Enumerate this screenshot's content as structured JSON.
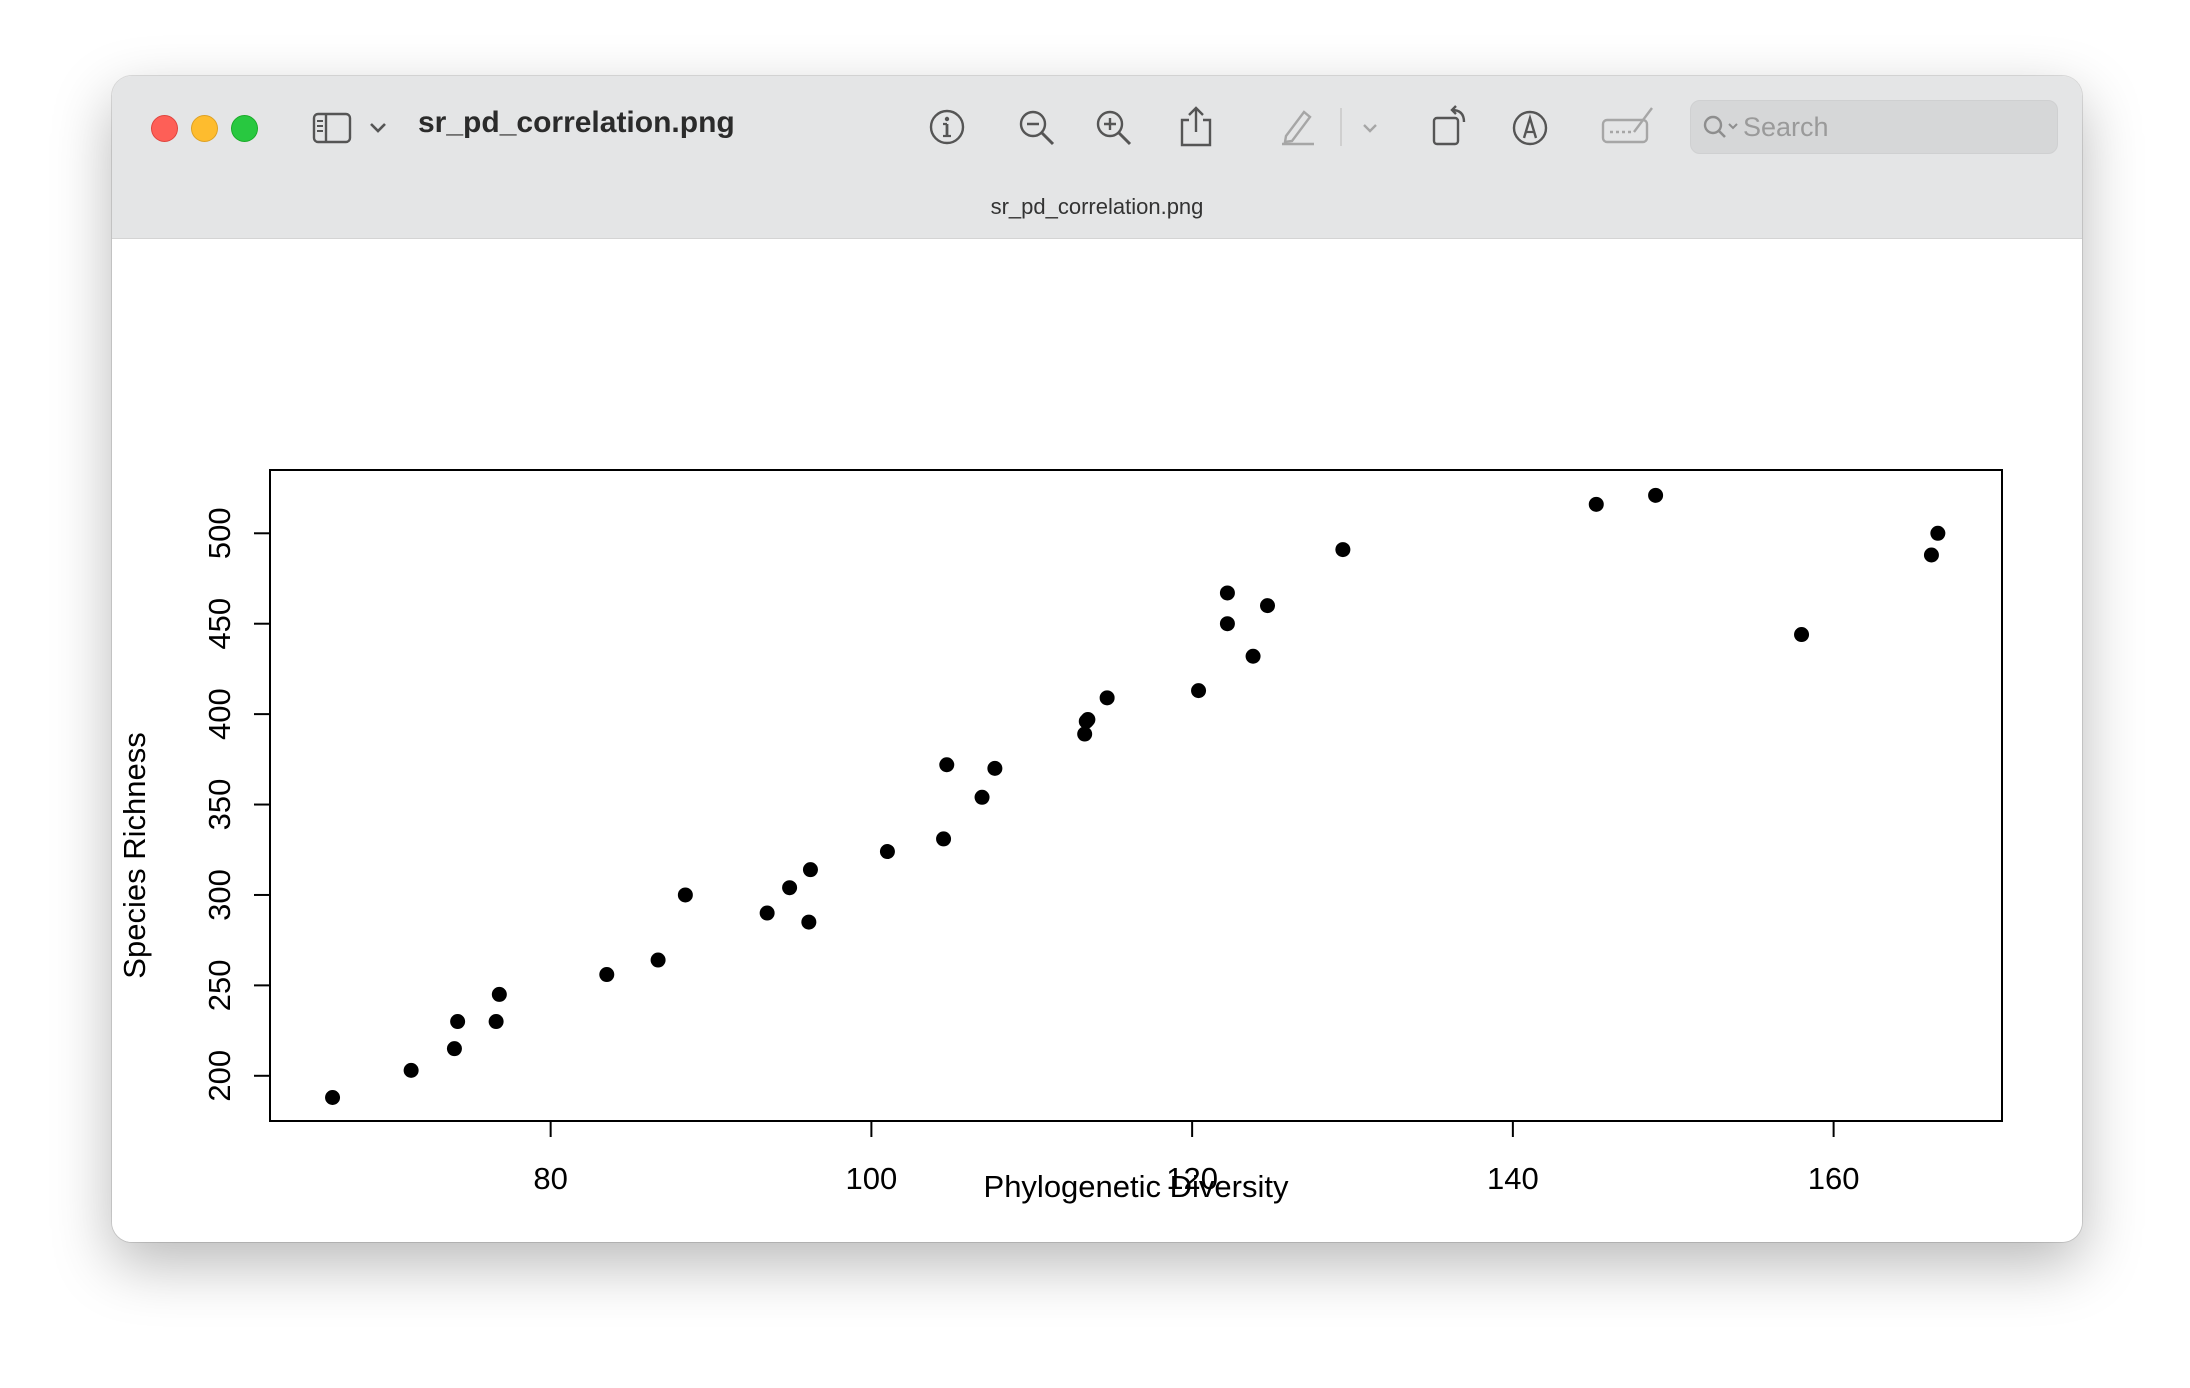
{
  "window": {
    "title": "sr_pd_correlation.png",
    "subtitle": "sr_pd_correlation.png",
    "search": {
      "placeholder": "Search",
      "value": ""
    }
  },
  "toolbar": {
    "icons": [
      "sidebar-icon",
      "chevron-down-icon",
      "info-icon",
      "zoom-out-icon",
      "zoom-in-icon",
      "share-icon",
      "highlight-pen-icon",
      "chevron-down-icon",
      "rotate-icon",
      "markup-icon",
      "sign-icon",
      "search-icon"
    ]
  },
  "colors": {
    "close": "#fe5f57",
    "minimize": "#febc2e",
    "maximize": "#28c840",
    "point": "#000000"
  },
  "chart_data": {
    "type": "scatter",
    "xlabel": "Phylogenetic Diversity",
    "ylabel": "Species Richness",
    "xlim": [
      62.5,
      170.5
    ],
    "ylim": [
      175,
      535
    ],
    "xticks": [
      "80",
      "100",
      "120",
      "140",
      "160"
    ],
    "yticks": [
      "200",
      "250",
      "300",
      "350",
      "400",
      "450",
      "500"
    ],
    "grid": false,
    "legend": "none",
    "points": [
      {
        "x": 66.4,
        "y": 188
      },
      {
        "x": 71.3,
        "y": 203
      },
      {
        "x": 74.0,
        "y": 215
      },
      {
        "x": 74.2,
        "y": 230
      },
      {
        "x": 76.6,
        "y": 230
      },
      {
        "x": 76.8,
        "y": 245
      },
      {
        "x": 83.5,
        "y": 256
      },
      {
        "x": 86.7,
        "y": 264
      },
      {
        "x": 88.4,
        "y": 300
      },
      {
        "x": 93.5,
        "y": 290
      },
      {
        "x": 94.9,
        "y": 304
      },
      {
        "x": 96.2,
        "y": 314
      },
      {
        "x": 96.1,
        "y": 285
      },
      {
        "x": 101.0,
        "y": 324
      },
      {
        "x": 104.5,
        "y": 331
      },
      {
        "x": 104.7,
        "y": 372
      },
      {
        "x": 106.9,
        "y": 354
      },
      {
        "x": 107.7,
        "y": 370
      },
      {
        "x": 113.3,
        "y": 389
      },
      {
        "x": 113.4,
        "y": 396
      },
      {
        "x": 113.5,
        "y": 397
      },
      {
        "x": 114.7,
        "y": 409
      },
      {
        "x": 120.4,
        "y": 413
      },
      {
        "x": 122.2,
        "y": 450
      },
      {
        "x": 122.2,
        "y": 467
      },
      {
        "x": 123.8,
        "y": 432
      },
      {
        "x": 124.7,
        "y": 460
      },
      {
        "x": 129.4,
        "y": 491
      },
      {
        "x": 145.2,
        "y": 516
      },
      {
        "x": 148.9,
        "y": 521
      },
      {
        "x": 158.0,
        "y": 444
      },
      {
        "x": 166.1,
        "y": 488
      },
      {
        "x": 166.5,
        "y": 500
      }
    ]
  }
}
